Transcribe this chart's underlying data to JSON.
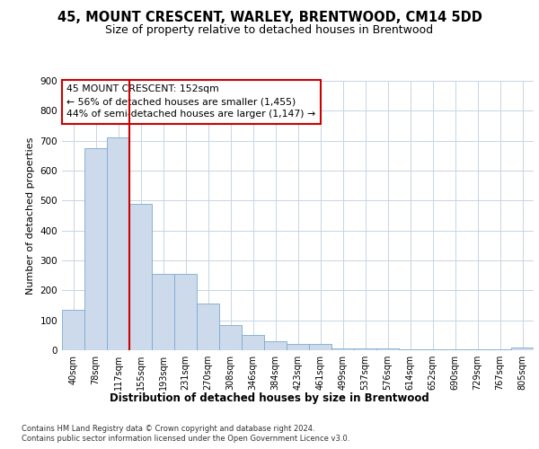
{
  "title1": "45, MOUNT CRESCENT, WARLEY, BRENTWOOD, CM14 5DD",
  "title2": "Size of property relative to detached houses in Brentwood",
  "xlabel": "Distribution of detached houses by size in Brentwood",
  "ylabel": "Number of detached properties",
  "bin_labels": [
    "40sqm",
    "78sqm",
    "117sqm",
    "155sqm",
    "193sqm",
    "231sqm",
    "270sqm",
    "308sqm",
    "346sqm",
    "384sqm",
    "423sqm",
    "461sqm",
    "499sqm",
    "537sqm",
    "576sqm",
    "614sqm",
    "652sqm",
    "690sqm",
    "729sqm",
    "767sqm",
    "805sqm"
  ],
  "bar_values": [
    135,
    675,
    710,
    490,
    255,
    255,
    155,
    85,
    50,
    30,
    20,
    20,
    5,
    5,
    5,
    2,
    2,
    2,
    2,
    2,
    8
  ],
  "bar_color": "#ccdaeb",
  "bar_edge_color": "#7baacf",
  "annotation_title": "45 MOUNT CRESCENT: 152sqm",
  "annotation_line1": "← 56% of detached houses are smaller (1,455)",
  "annotation_line2": "44% of semi-detached houses are larger (1,147) →",
  "vline_color": "#cc0000",
  "annotation_box_color": "#ffffff",
  "annotation_box_edge": "#cc0000",
  "ylim": [
    0,
    900
  ],
  "yticks": [
    0,
    100,
    200,
    300,
    400,
    500,
    600,
    700,
    800,
    900
  ],
  "footer1": "Contains HM Land Registry data © Crown copyright and database right 2024.",
  "footer2": "Contains public sector information licensed under the Open Government Licence v3.0.",
  "bg_color": "#ffffff",
  "grid_color": "#c8d4e4"
}
